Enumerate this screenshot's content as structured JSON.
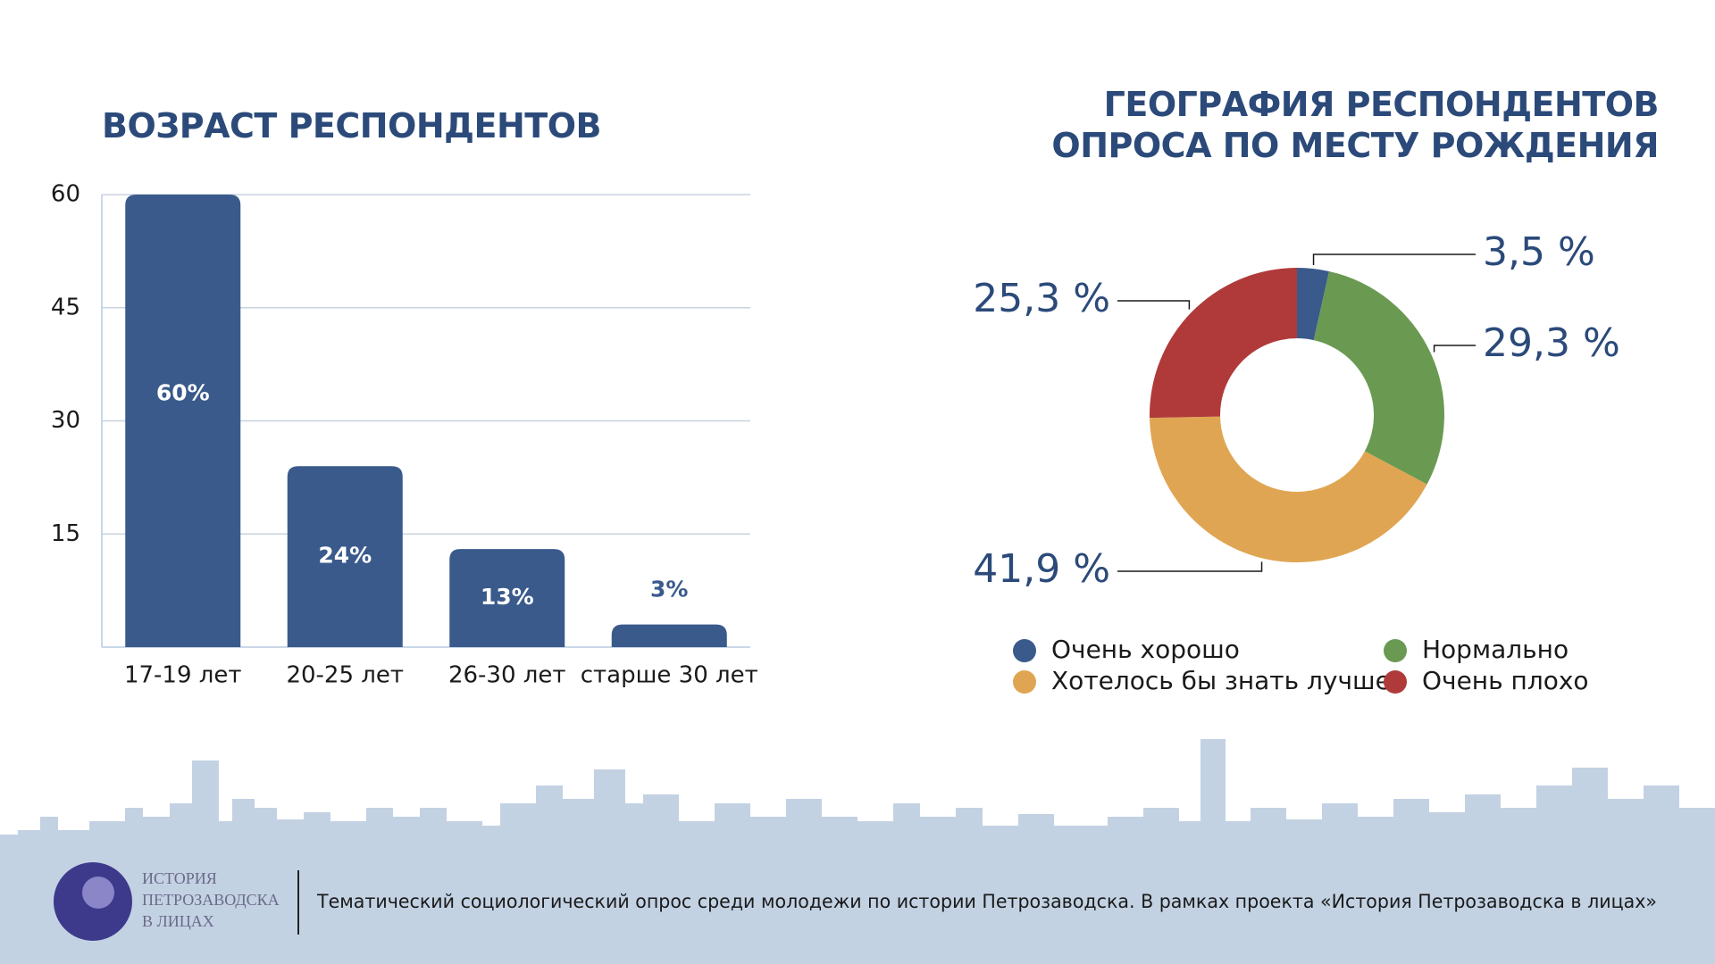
{
  "chart_data": [
    {
      "type": "bar",
      "title": "ВОЗРАСТ РЕСПОНДЕНТОВ",
      "categories": [
        "17-19 лет",
        "20-25 лет",
        "26-30 лет",
        "старше 30 лет"
      ],
      "values": [
        60,
        24,
        13,
        3
      ],
      "value_labels": [
        "60%",
        "24%",
        "13%",
        "3%"
      ],
      "color": "#3a5a8c",
      "ylim": [
        0,
        60
      ],
      "yticks": [
        15,
        30,
        45,
        60
      ],
      "grid": true
    },
    {
      "type": "pie",
      "title": "ГЕОГРАФИЯ РЕСПОНДЕНТОВ ОПРОСА ПО МЕСТУ РОЖДЕНИЯ",
      "categories": [
        "Очень хорошо",
        "Нормально",
        "Хотелось бы знать лучше",
        "Очень плохо"
      ],
      "values": [
        3.5,
        29.3,
        41.9,
        25.3
      ],
      "value_labels": [
        "3,5 %",
        "29,3 %",
        "41,9 %",
        "25,3 %"
      ],
      "colors": [
        "#3a5a8c",
        "#6a9a52",
        "#e0a552",
        "#b03a3a"
      ],
      "donut": true
    }
  ],
  "footer": {
    "logo_text": [
      "ИСТОРИЯ",
      "ПЕТРОЗАВОДСКА",
      "В ЛИЦАХ"
    ],
    "caption": "Тематический социологический опрос среди молодежи по истории Петрозаводска. В рамках проекта «История Петрозаводска в лицах»"
  }
}
